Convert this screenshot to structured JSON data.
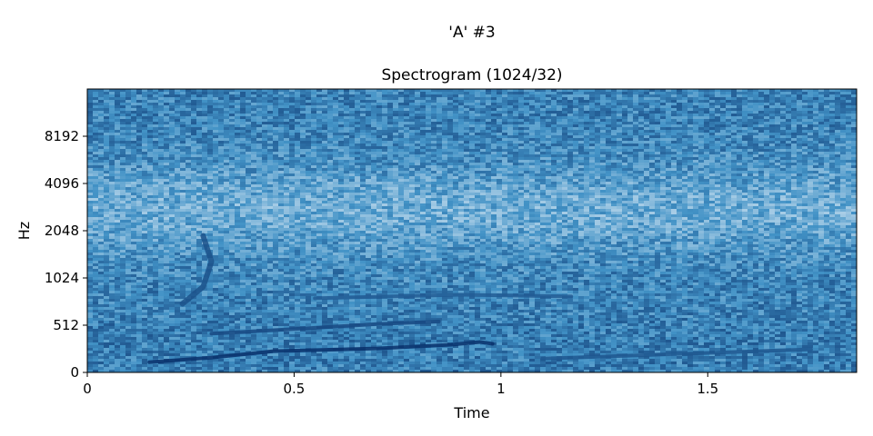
{
  "figure": {
    "suptitle": "'A' #3"
  },
  "chart_data": {
    "type": "heatmap",
    "title": "Spectrogram (1024/32)",
    "xlabel": "Time",
    "ylabel": "Hz",
    "xlim": [
      0,
      1.86
    ],
    "ylim": [
      0,
      16000
    ],
    "y_scale": "symlog (linear below 512 Hz, log2 above)",
    "x_ticks": [
      {
        "value": 0,
        "label": "0"
      },
      {
        "value": 0.5,
        "label": "0.5"
      },
      {
        "value": 1,
        "label": "1"
      },
      {
        "value": 1.5,
        "label": "1.5"
      }
    ],
    "y_ticks": [
      {
        "value": 0,
        "label": "0"
      },
      {
        "value": 512,
        "label": "512"
      },
      {
        "value": 1024,
        "label": "1024"
      },
      {
        "value": 2048,
        "label": "2048"
      },
      {
        "value": 4096,
        "label": "4096"
      },
      {
        "value": 8192,
        "label": "8192"
      }
    ],
    "colormap": "Blues",
    "colors": {
      "low": "#f7fbff",
      "high": "#08306b",
      "base": "#4a90c9"
    },
    "grid": false,
    "features": [
      {
        "name": "fundamental",
        "points": [
          [
            0.15,
            110
          ],
          [
            0.3,
            160
          ],
          [
            0.45,
            230
          ],
          [
            0.7,
            260
          ],
          [
            0.88,
            300
          ],
          [
            0.95,
            330
          ],
          [
            0.98,
            310
          ]
        ],
        "strength": 1.0
      },
      {
        "name": "second-harmonic",
        "points": [
          [
            0.3,
            420
          ],
          [
            0.5,
            470
          ],
          [
            0.7,
            520
          ],
          [
            0.85,
            540
          ]
        ],
        "strength": 0.75
      },
      {
        "name": "third-harmonic",
        "points": [
          [
            0.55,
            760
          ],
          [
            0.9,
            800
          ],
          [
            1.17,
            780
          ]
        ],
        "strength": 0.55
      },
      {
        "name": "late-tone",
        "points": [
          [
            1.1,
            150
          ],
          [
            1.3,
            180
          ],
          [
            1.55,
            220
          ],
          [
            1.75,
            250
          ]
        ],
        "strength": 0.6
      },
      {
        "name": "formant-cluster",
        "points": [
          [
            0.23,
            700
          ],
          [
            0.28,
            900
          ],
          [
            0.3,
            1300
          ],
          [
            0.28,
            1900
          ]
        ],
        "strength": 0.65
      }
    ]
  }
}
